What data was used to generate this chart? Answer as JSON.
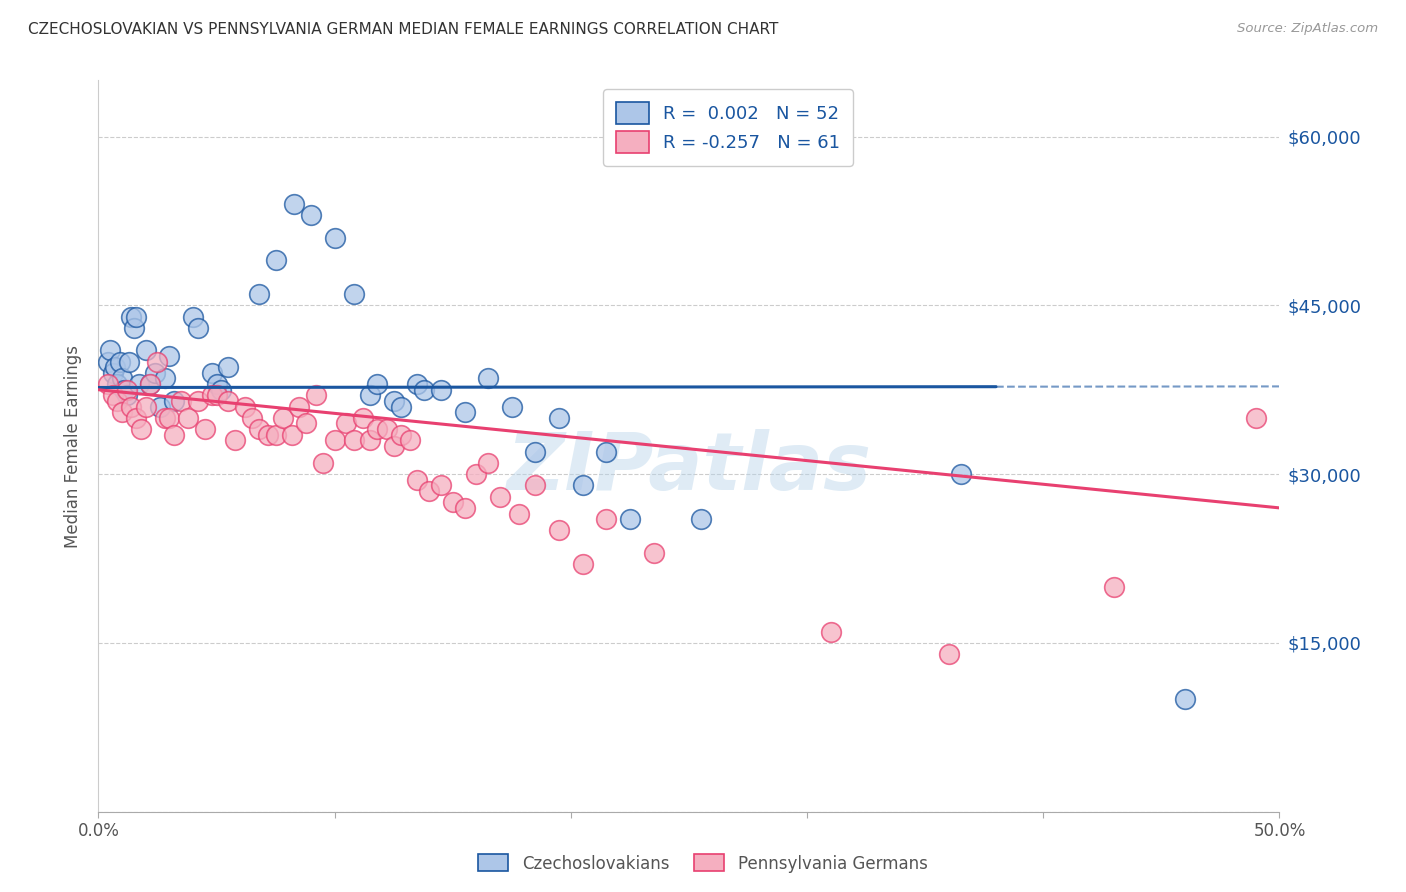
{
  "title": "CZECHOSLOVAKIAN VS PENNSYLVANIA GERMAN MEDIAN FEMALE EARNINGS CORRELATION CHART",
  "source": "Source: ZipAtlas.com",
  "ylabel": "Median Female Earnings",
  "yticks": [
    0,
    15000,
    30000,
    45000,
    60000
  ],
  "ytick_labels": [
    "",
    "$15,000",
    "$30,000",
    "$45,000",
    "$60,000"
  ],
  "xmin": 0.0,
  "xmax": 0.5,
  "ymin": 0,
  "ymax": 65000,
  "color_blue": "#adc6e8",
  "color_pink": "#f5afc0",
  "line_blue": "#1a56a0",
  "line_pink": "#e84070",
  "legend_text_color": "#1a56a0",
  "watermark": "ZIPatlas",
  "label_blue": "Czechoslovakians",
  "label_pink": "Pennsylvania Germans",
  "blue_scatter": [
    [
      0.004,
      40000
    ],
    [
      0.005,
      41000
    ],
    [
      0.006,
      39000
    ],
    [
      0.007,
      39500
    ],
    [
      0.008,
      38000
    ],
    [
      0.009,
      40000
    ],
    [
      0.01,
      38500
    ],
    [
      0.011,
      37500
    ],
    [
      0.012,
      37000
    ],
    [
      0.013,
      40000
    ],
    [
      0.014,
      44000
    ],
    [
      0.015,
      43000
    ],
    [
      0.016,
      44000
    ],
    [
      0.017,
      38000
    ],
    [
      0.02,
      41000
    ],
    [
      0.022,
      38000
    ],
    [
      0.024,
      39000
    ],
    [
      0.026,
      36000
    ],
    [
      0.028,
      38500
    ],
    [
      0.03,
      40500
    ],
    [
      0.032,
      36500
    ],
    [
      0.04,
      44000
    ],
    [
      0.042,
      43000
    ],
    [
      0.048,
      39000
    ],
    [
      0.05,
      38000
    ],
    [
      0.052,
      37500
    ],
    [
      0.055,
      39500
    ],
    [
      0.068,
      46000
    ],
    [
      0.075,
      49000
    ],
    [
      0.083,
      54000
    ],
    [
      0.09,
      53000
    ],
    [
      0.1,
      51000
    ],
    [
      0.108,
      46000
    ],
    [
      0.115,
      37000
    ],
    [
      0.118,
      38000
    ],
    [
      0.125,
      36500
    ],
    [
      0.128,
      36000
    ],
    [
      0.135,
      38000
    ],
    [
      0.138,
      37500
    ],
    [
      0.145,
      37500
    ],
    [
      0.155,
      35500
    ],
    [
      0.165,
      38500
    ],
    [
      0.175,
      36000
    ],
    [
      0.185,
      32000
    ],
    [
      0.195,
      35000
    ],
    [
      0.205,
      29000
    ],
    [
      0.215,
      32000
    ],
    [
      0.225,
      26000
    ],
    [
      0.255,
      26000
    ],
    [
      0.365,
      30000
    ],
    [
      0.46,
      10000
    ]
  ],
  "pink_scatter": [
    [
      0.004,
      38000
    ],
    [
      0.006,
      37000
    ],
    [
      0.008,
      36500
    ],
    [
      0.01,
      35500
    ],
    [
      0.012,
      37500
    ],
    [
      0.014,
      36000
    ],
    [
      0.016,
      35000
    ],
    [
      0.018,
      34000
    ],
    [
      0.02,
      36000
    ],
    [
      0.022,
      38000
    ],
    [
      0.025,
      40000
    ],
    [
      0.028,
      35000
    ],
    [
      0.03,
      35000
    ],
    [
      0.032,
      33500
    ],
    [
      0.035,
      36500
    ],
    [
      0.038,
      35000
    ],
    [
      0.042,
      36500
    ],
    [
      0.045,
      34000
    ],
    [
      0.048,
      37000
    ],
    [
      0.05,
      37000
    ],
    [
      0.055,
      36500
    ],
    [
      0.058,
      33000
    ],
    [
      0.062,
      36000
    ],
    [
      0.065,
      35000
    ],
    [
      0.068,
      34000
    ],
    [
      0.072,
      33500
    ],
    [
      0.075,
      33500
    ],
    [
      0.078,
      35000
    ],
    [
      0.082,
      33500
    ],
    [
      0.085,
      36000
    ],
    [
      0.088,
      34500
    ],
    [
      0.092,
      37000
    ],
    [
      0.095,
      31000
    ],
    [
      0.1,
      33000
    ],
    [
      0.105,
      34500
    ],
    [
      0.108,
      33000
    ],
    [
      0.112,
      35000
    ],
    [
      0.115,
      33000
    ],
    [
      0.118,
      34000
    ],
    [
      0.122,
      34000
    ],
    [
      0.125,
      32500
    ],
    [
      0.128,
      33500
    ],
    [
      0.132,
      33000
    ],
    [
      0.135,
      29500
    ],
    [
      0.14,
      28500
    ],
    [
      0.145,
      29000
    ],
    [
      0.15,
      27500
    ],
    [
      0.155,
      27000
    ],
    [
      0.16,
      30000
    ],
    [
      0.165,
      31000
    ],
    [
      0.17,
      28000
    ],
    [
      0.178,
      26500
    ],
    [
      0.185,
      29000
    ],
    [
      0.195,
      25000
    ],
    [
      0.205,
      22000
    ],
    [
      0.215,
      26000
    ],
    [
      0.235,
      23000
    ],
    [
      0.31,
      16000
    ],
    [
      0.36,
      14000
    ],
    [
      0.43,
      20000
    ],
    [
      0.49,
      35000
    ]
  ],
  "blue_line_solid": [
    [
      0.0,
      37700
    ],
    [
      0.38,
      37770
    ]
  ],
  "blue_line_dashed": [
    [
      0.38,
      37770
    ],
    [
      0.52,
      37800
    ]
  ],
  "pink_line": [
    [
      0.0,
      37500
    ],
    [
      0.5,
      27000
    ]
  ]
}
